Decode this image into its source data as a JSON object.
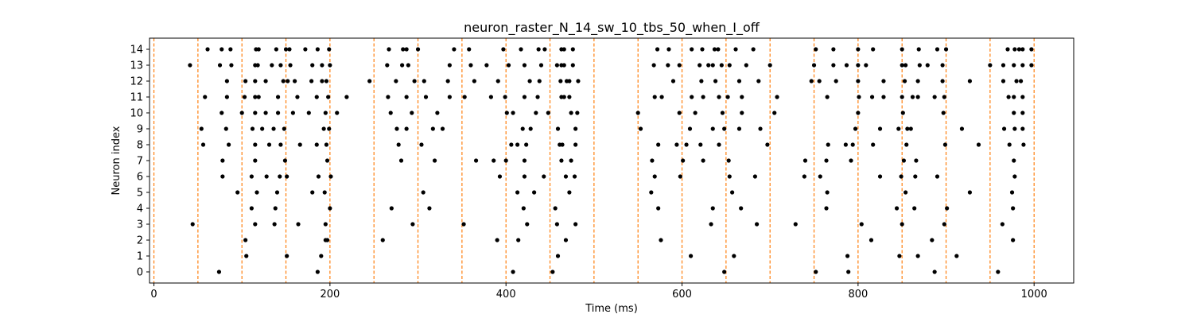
{
  "chart_data": {
    "type": "scatter",
    "title": "neuron_raster_N_14_sw_10_tbs_50_when_I_off",
    "xlabel": "Time (ms)",
    "ylabel": "Neuron index",
    "xlim": [
      -5,
      1045
    ],
    "ylim": [
      -0.7,
      14.7
    ],
    "xticks": [
      0,
      200,
      400,
      600,
      800,
      1000
    ],
    "yticks": [
      0,
      1,
      2,
      3,
      4,
      5,
      6,
      7,
      8,
      9,
      10,
      11,
      12,
      13,
      14
    ],
    "grid": false,
    "marker_color": "#000000",
    "vline_color": "#ff7f0e",
    "vline_style": "dashed",
    "vlines": [
      0,
      50,
      100,
      150,
      200,
      250,
      300,
      350,
      400,
      450,
      500,
      550,
      600,
      650,
      700,
      750,
      800,
      850,
      900,
      950,
      1000
    ],
    "spikes": [
      {
        "neuron": 14,
        "times": [
          61,
          77,
          87,
          116,
          119,
          139,
          150,
          154,
          172,
          186,
          199,
          267,
          283,
          287,
          300,
          341,
          358,
          397,
          417,
          437,
          444,
          463,
          466,
          476,
          572,
          585,
          611,
          623,
          637,
          641,
          661,
          681,
          752,
          772,
          800,
          817,
          850,
          869,
          890,
          900,
          970,
          978,
          983,
          987,
          997
        ]
      },
      {
        "neuron": 13,
        "times": [
          41,
          75,
          88,
          115,
          118,
          134,
          144,
          155,
          180,
          191,
          200,
          265,
          282,
          289,
          336,
          360,
          378,
          403,
          421,
          440,
          458,
          463,
          466,
          476,
          568,
          584,
          597,
          620,
          630,
          635,
          645,
          654,
          673,
          700,
          750,
          772,
          787,
          800,
          809,
          850,
          854,
          870,
          879,
          896,
          950,
          965,
          977,
          987,
          997
        ]
      },
      {
        "neuron": 12,
        "times": [
          83,
          104,
          115,
          127,
          147,
          152,
          160,
          179,
          191,
          196,
          245,
          275,
          296,
          307,
          334,
          364,
          391,
          427,
          438,
          462,
          469,
          472,
          482,
          590,
          622,
          638,
          665,
          687,
          747,
          756,
          775,
          800,
          829,
          853,
          868,
          896,
          927,
          965,
          980,
          985
        ]
      },
      {
        "neuron": 11,
        "times": [
          58,
          83,
          103,
          115,
          119,
          141,
          163,
          185,
          198,
          219,
          266,
          287,
          309,
          336,
          353,
          383,
          399,
          421,
          436,
          463,
          466,
          472,
          569,
          577,
          611,
          624,
          642,
          652,
          668,
          708,
          765,
          801,
          816,
          829,
          850,
          862,
          868,
          887,
          898,
          971,
          977,
          987
        ]
      },
      {
        "neuron": 10,
        "times": [
          77,
          100,
          115,
          127,
          141,
          158,
          176,
          195,
          208,
          269,
          293,
          322,
          401,
          408,
          434,
          448,
          474,
          481,
          550,
          597,
          615,
          646,
          668,
          705,
          800,
          851,
          897,
          977,
          987
        ]
      },
      {
        "neuron": 9,
        "times": [
          54,
          82,
          112,
          123,
          136,
          148,
          193,
          199,
          276,
          287,
          317,
          328,
          419,
          428,
          459,
          479,
          553,
          609,
          635,
          648,
          665,
          689,
          797,
          825,
          846,
          856,
          860,
          918,
          966,
          978,
          987
        ]
      },
      {
        "neuron": 8,
        "times": [
          56,
          85,
          115,
          131,
          144,
          166,
          185,
          196,
          278,
          304,
          406,
          413,
          423,
          461,
          464,
          479,
          573,
          594,
          605,
          621,
          642,
          697,
          766,
          786,
          794,
          817,
          855,
          899,
          937,
          972,
          988
        ]
      },
      {
        "neuron": 7,
        "times": [
          78,
          115,
          149,
          197,
          281,
          319,
          366,
          386,
          400,
          421,
          463,
          474,
          566,
          601,
          624,
          653,
          740,
          764,
          792,
          852,
          866,
          977
        ]
      },
      {
        "neuron": 6,
        "times": [
          78,
          111,
          128,
          143,
          151,
          187,
          201,
          393,
          421,
          443,
          468,
          478,
          569,
          598,
          654,
          683,
          739,
          757,
          825,
          849,
          865,
          890,
          978
        ]
      },
      {
        "neuron": 5,
        "times": [
          95,
          117,
          140,
          180,
          194,
          306,
          413,
          432,
          472,
          565,
          657,
          765,
          854,
          927,
          975
        ]
      },
      {
        "neuron": 4,
        "times": [
          111,
          138,
          200,
          270,
          313,
          420,
          456,
          573,
          635,
          667,
          764,
          844,
          864,
          901,
          976
        ]
      },
      {
        "neuron": 3,
        "times": [
          44,
          115,
          137,
          164,
          195,
          294,
          352,
          424,
          458,
          479,
          633,
          685,
          729,
          804,
          850,
          898,
          964
        ]
      },
      {
        "neuron": 2,
        "times": [
          104,
          195,
          197,
          260,
          390,
          414,
          468,
          576,
          815,
          884,
          976
        ]
      },
      {
        "neuron": 1,
        "times": [
          105,
          151,
          190,
          459,
          610,
          659,
          788,
          847,
          868,
          912
        ]
      },
      {
        "neuron": 0,
        "times": [
          74,
          186,
          408,
          453,
          648,
          752,
          789,
          887,
          959
        ]
      }
    ]
  }
}
